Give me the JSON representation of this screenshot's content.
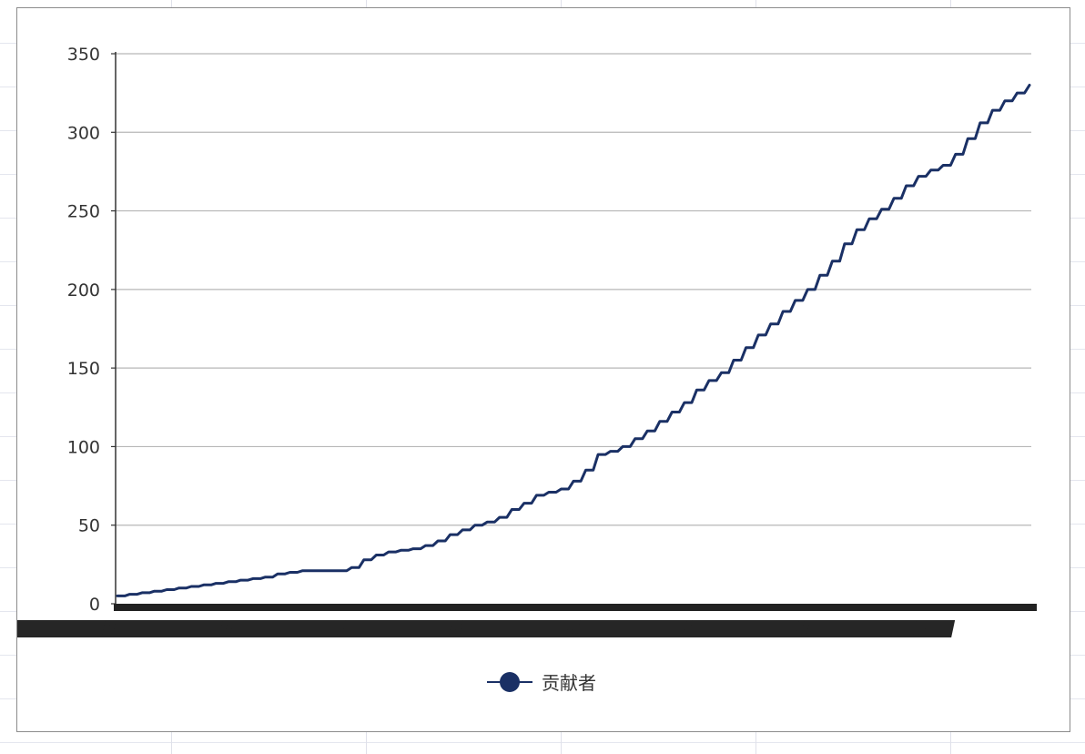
{
  "chart_data": {
    "type": "line",
    "title": "",
    "xlabel": "",
    "ylabel": "",
    "ylim": [
      0,
      350
    ],
    "yticks": [
      0,
      50,
      100,
      150,
      200,
      250,
      300,
      350
    ],
    "grid": "horizontal",
    "legend_position": "bottom-center",
    "x_tick_labels_legible": false,
    "series": [
      {
        "name": "贡献者",
        "color": "#1a3065",
        "values": [
          5,
          6,
          7,
          8,
          9,
          10,
          11,
          12,
          13,
          14,
          15,
          16,
          17,
          19,
          20,
          21,
          21,
          21,
          21,
          23,
          28,
          31,
          33,
          34,
          35,
          37,
          40,
          44,
          47,
          50,
          52,
          55,
          60,
          64,
          69,
          71,
          73,
          78,
          85,
          95,
          97,
          100,
          105,
          110,
          116,
          122,
          128,
          136,
          142,
          147,
          155,
          163,
          171,
          178,
          186,
          193,
          200,
          209,
          218,
          229,
          238,
          245,
          251,
          258,
          266,
          272,
          276,
          279,
          286,
          296,
          306,
          314,
          320,
          325,
          330
        ]
      }
    ]
  }
}
